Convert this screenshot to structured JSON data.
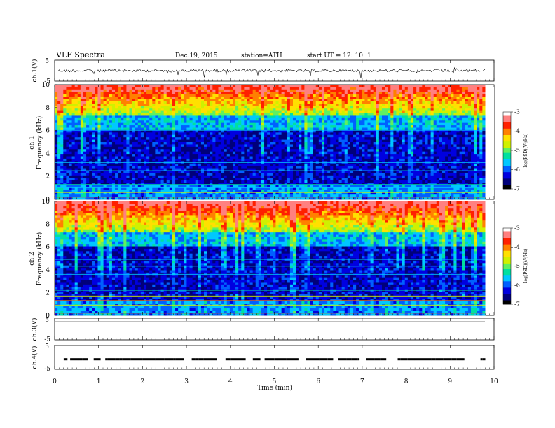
{
  "header": {
    "title": "VLF  Spectra",
    "date": "Dec.19, 2015",
    "station": "station=ATH",
    "start": "start  UT  =    12: 10: 1"
  },
  "chart_data": [
    {
      "type": "line",
      "name": "ch1-waveform",
      "ylabel": "ch.1(V)",
      "ylim": [
        -5,
        5
      ],
      "yticks": [
        "5",
        "-5"
      ],
      "color": "#000000",
      "description_note": ""
    },
    {
      "type": "heatmap",
      "name": "ch1-spectrogram",
      "ylabel": "ch.1\nFrequency (kHz)",
      "ylabel_lines": [
        "ch.1",
        "Frequency  (kHz)"
      ],
      "ylim": [
        0,
        10
      ],
      "yticks": [
        "0",
        "2",
        "4",
        "6",
        "8",
        "10"
      ],
      "colorbar": {
        "label": "log(PSD)(V²/Hz)",
        "range": [
          -7,
          -3
        ],
        "ticks": [
          "-3",
          "-4",
          "-5",
          "-6",
          "-7"
        ]
      }
    },
    {
      "type": "heatmap",
      "name": "ch2-spectrogram",
      "ylabel_lines": [
        "ch.2",
        "Frequency  (kHz)"
      ],
      "ylim": [
        0,
        10
      ],
      "yticks": [
        "0",
        "2",
        "4",
        "6",
        "8",
        "10"
      ],
      "colorbar": {
        "label": "log(PSD)(V²/Hz)",
        "range": [
          -7,
          -3
        ],
        "ticks": [
          "-3",
          "-4",
          "-5",
          "-6",
          "-7"
        ]
      }
    },
    {
      "type": "line",
      "name": "ch3-waveform",
      "ylabel": "ch.3(V)",
      "ylim": [
        -5,
        5
      ],
      "yticks": [
        "5",
        "-5"
      ]
    },
    {
      "type": "line",
      "name": "ch4-waveform",
      "ylabel": "ch.4(V)",
      "ylim": [
        -5,
        5
      ],
      "yticks": [
        "5",
        "-5"
      ]
    }
  ],
  "xaxis": {
    "label": "Time  (min)",
    "ticks": [
      "0",
      "1",
      "2",
      "3",
      "4",
      "5",
      "6",
      "7",
      "8",
      "9",
      "10"
    ],
    "xlim": [
      0,
      10
    ],
    "data_end": 9.8
  },
  "colormap": [
    "#000000",
    "#00007a",
    "#0000e0",
    "#0060ff",
    "#00c8ff",
    "#00e0a0",
    "#60f060",
    "#d0f000",
    "#ffe000",
    "#ff8000",
    "#ff2000",
    "#ff8080",
    "#ffffff"
  ]
}
